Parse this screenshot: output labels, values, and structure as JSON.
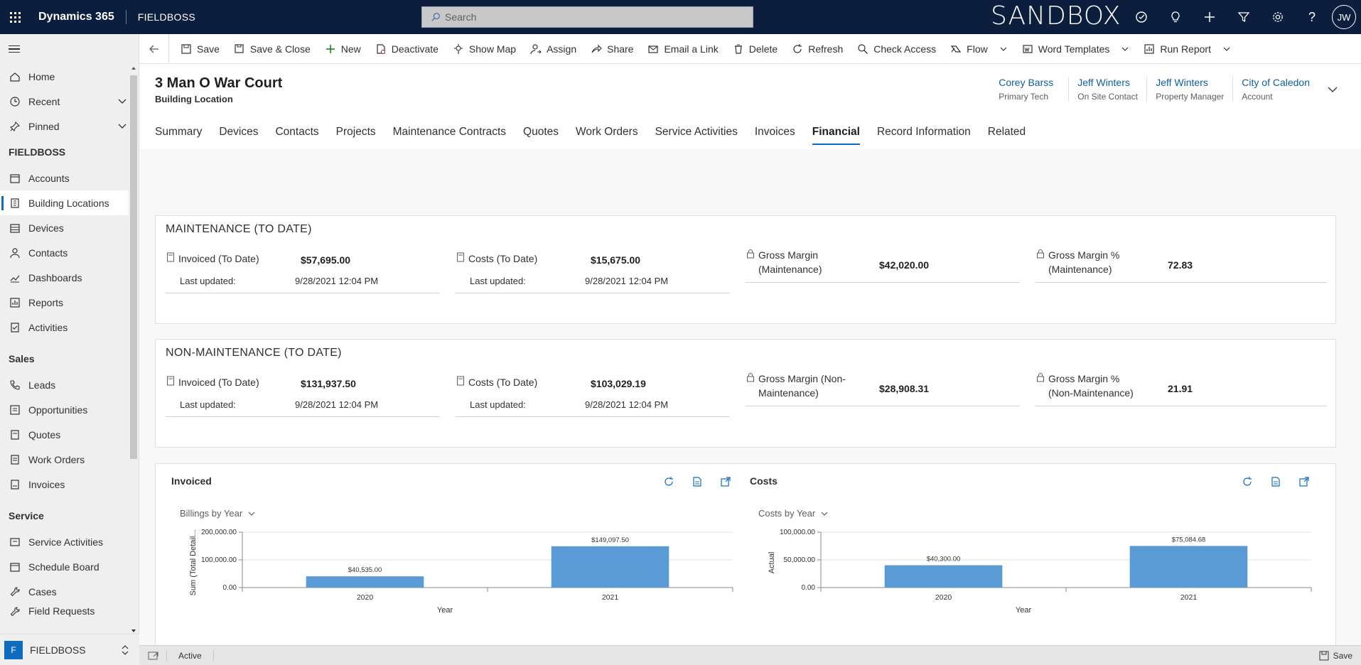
{
  "app": {
    "name": "Dynamics 365",
    "org": "FIELDBOSS",
    "environment": "SANDBOX",
    "user_initials": "JW"
  },
  "search": {
    "placeholder": "Search"
  },
  "sidebar": {
    "top_items": [
      {
        "label": "Home",
        "icon": "home-icon"
      },
      {
        "label": "Recent",
        "icon": "clock-icon"
      },
      {
        "label": "Pinned",
        "icon": "pin-icon"
      }
    ],
    "groups": [
      {
        "title": "FIELDBOSS",
        "items": [
          {
            "label": "Accounts",
            "icon": "accounts-icon"
          },
          {
            "label": "Building Locations",
            "icon": "building-icon",
            "active": true
          },
          {
            "label": "Devices",
            "icon": "devices-icon"
          },
          {
            "label": "Contacts",
            "icon": "person-icon"
          },
          {
            "label": "Dashboards",
            "icon": "dashboard-icon"
          },
          {
            "label": "Reports",
            "icon": "report-icon"
          },
          {
            "label": "Activities",
            "icon": "activities-icon"
          }
        ]
      },
      {
        "title": "Sales",
        "items": [
          {
            "label": "Leads",
            "icon": "phone-icon"
          },
          {
            "label": "Opportunities",
            "icon": "opportunity-icon"
          },
          {
            "label": "Quotes",
            "icon": "quote-icon"
          },
          {
            "label": "Work Orders",
            "icon": "workorder-icon"
          },
          {
            "label": "Invoices",
            "icon": "invoice-icon"
          }
        ]
      },
      {
        "title": "Service",
        "items": [
          {
            "label": "Service Activities",
            "icon": "service-icon"
          },
          {
            "label": "Schedule Board",
            "icon": "calendar-icon"
          },
          {
            "label": "Cases",
            "icon": "wrench-icon"
          },
          {
            "label": "Field Requests",
            "icon": "wrench-icon"
          }
        ]
      }
    ],
    "area": {
      "badge": "F",
      "label": "FIELDBOSS"
    }
  },
  "commands": [
    {
      "label": "Save",
      "icon": "save-icon"
    },
    {
      "label": "Save & Close",
      "icon": "save-close-icon"
    },
    {
      "label": "New",
      "icon": "plus-icon"
    },
    {
      "label": "Deactivate",
      "icon": "deactivate-icon"
    },
    {
      "label": "Show Map",
      "icon": "map-icon"
    },
    {
      "label": "Assign",
      "icon": "assign-icon"
    },
    {
      "label": "Share",
      "icon": "share-icon"
    },
    {
      "label": "Email a Link",
      "icon": "email-icon"
    },
    {
      "label": "Delete",
      "icon": "delete-icon"
    },
    {
      "label": "Refresh",
      "icon": "refresh-icon"
    },
    {
      "label": "Check Access",
      "icon": "check-access-icon"
    },
    {
      "label": "Flow",
      "icon": "flow-icon",
      "dropdown": true
    },
    {
      "label": "Word Templates",
      "icon": "word-icon",
      "dropdown": true
    },
    {
      "label": "Run Report",
      "icon": "report-icon",
      "dropdown": true
    }
  ],
  "record": {
    "title": "3 Man O War Court",
    "entity": "Building Location",
    "header_fields": [
      {
        "value": "Corey Barss",
        "label": "Primary Tech"
      },
      {
        "value": "Jeff Winters",
        "label": "On Site Contact"
      },
      {
        "value": "Jeff Winters",
        "label": "Property Manager"
      },
      {
        "value": "City of Caledon",
        "label": "Account"
      }
    ]
  },
  "tabs": [
    "Summary",
    "Devices",
    "Contacts",
    "Projects",
    "Maintenance Contracts",
    "Quotes",
    "Work Orders",
    "Service Activities",
    "Invoices",
    "Financial",
    "Record Information",
    "Related"
  ],
  "selected_tab": "Financial",
  "maintenance": {
    "title": "MAINTENANCE (TO DATE)",
    "invoiced": {
      "label": "Invoiced (To Date)",
      "value": "$57,695.00",
      "sub_label": "Last updated:",
      "sub_value": "9/28/2021 12:04 PM"
    },
    "costs": {
      "label": "Costs (To Date)",
      "value": "$15,675.00",
      "sub_label": "Last updated:",
      "sub_value": "9/28/2021 12:04 PM"
    },
    "gross_margin": {
      "label": "Gross Margin (Maintenance)",
      "value": "$42,020.00"
    },
    "gross_margin_pct": {
      "label": "Gross Margin % (Maintenance)",
      "value": "72.83"
    }
  },
  "non_maintenance": {
    "title": "NON-MAINTENANCE (TO DATE)",
    "invoiced": {
      "label": "Invoiced (To Date)",
      "value": "$131,937.50",
      "sub_label": "Last updated:",
      "sub_value": "9/28/2021 12:04 PM"
    },
    "costs": {
      "label": "Costs (To Date)",
      "value": "$103,029.19",
      "sub_label": "Last updated:",
      "sub_value": "9/28/2021 12:04 PM"
    },
    "gross_margin": {
      "label": "Gross Margin (Non-Maintenance)",
      "value": "$28,908.31"
    },
    "gross_margin_pct": {
      "label": "Gross Margin % (Non-Maintenance)",
      "value": "21.91"
    }
  },
  "charts": {
    "invoiced": {
      "title": "Invoiced",
      "view": "Billings by Year"
    },
    "costs": {
      "title": "Costs",
      "view": "Costs by Year"
    }
  },
  "chart_data": [
    {
      "type": "bar",
      "title": "",
      "categories": [
        "2020",
        "2021"
      ],
      "values": [
        40535.0,
        149097.5
      ],
      "data_labels": [
        "$40,535.00",
        "$149,097.50"
      ],
      "xlabel": "Year",
      "ylabel": "Sum (Total Detail...",
      "ylim": [
        0,
        200000
      ],
      "yticks": [
        "0.00",
        "100,000.00",
        "200,000.00"
      ],
      "color": "#5b9bd5"
    },
    {
      "type": "bar",
      "title": "",
      "categories": [
        "2020",
        "2021"
      ],
      "values": [
        40300.0,
        75084.68
      ],
      "data_labels": [
        "$40,300.00",
        "$75,084.68"
      ],
      "xlabel": "Year",
      "ylabel": "Actual",
      "ylim": [
        0,
        100000
      ],
      "yticks": [
        "0.00",
        "50,000.00",
        "100,000.00"
      ],
      "color": "#5b9bd5"
    }
  ],
  "status": {
    "state": "Active",
    "save_label": "Save"
  }
}
